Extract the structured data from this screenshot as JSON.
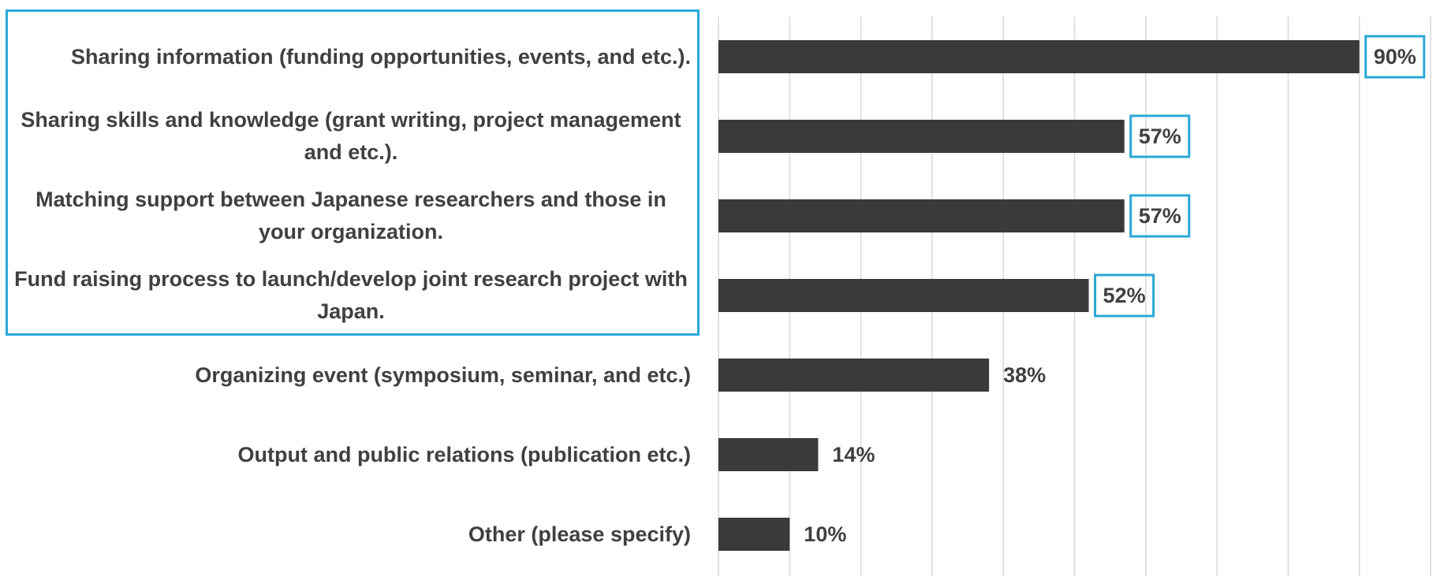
{
  "chart_data": {
    "type": "bar",
    "orientation": "horizontal",
    "categories": [
      "Sharing information (funding opportunities, events, and etc.).",
      "Sharing skills and knowledge (grant writing, project management and etc.).",
      "Matching support between Japanese researchers and those in your organization.",
      "Fund raising process to launch/develop joint research project with Japan.",
      "Organizing event (symposium, seminar, and etc.)",
      "Output and public relations (publication etc.)",
      "Other (please specify)"
    ],
    "values": [
      90,
      57,
      57,
      52,
      38,
      14,
      10
    ],
    "value_labels": [
      "90%",
      "57%",
      "57%",
      "52%",
      "38%",
      "14%",
      "10%"
    ],
    "color": "#3a3a3a",
    "xlim": [
      0,
      100
    ],
    "xticks": [
      0,
      10,
      20,
      30,
      40,
      50,
      60,
      70,
      80,
      90,
      100
    ],
    "grid": true
  }
}
